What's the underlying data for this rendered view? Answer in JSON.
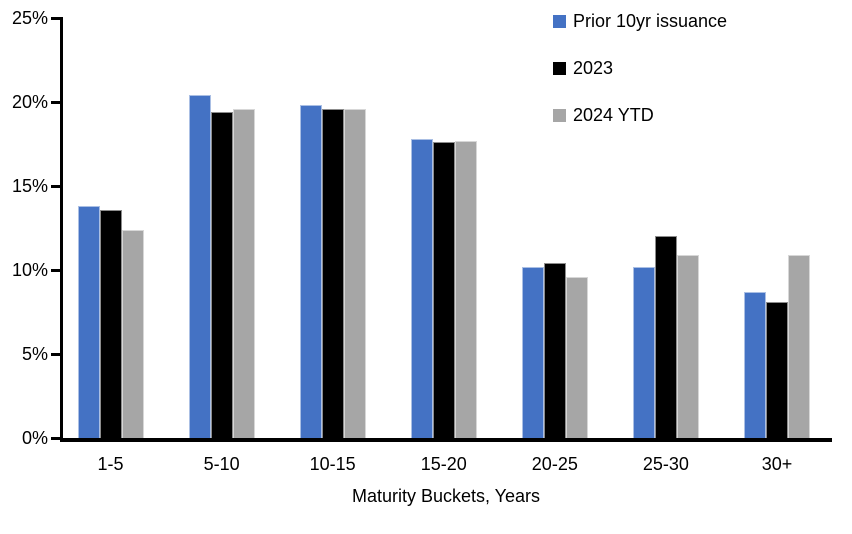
{
  "chart_data": {
    "type": "bar",
    "title": "",
    "xlabel": "Maturity Buckets, Years",
    "ylabel": "",
    "categories": [
      "1-5",
      "5-10",
      "10-15",
      "15-20",
      "20-25",
      "25-30",
      "30+"
    ],
    "series": [
      {
        "name": "Prior 10yr issuance",
        "color": "#4472C4",
        "values": [
          13.8,
          20.4,
          19.8,
          17.8,
          10.2,
          10.2,
          8.7
        ]
      },
      {
        "name": "2023",
        "color": "#000000",
        "values": [
          13.6,
          19.4,
          19.6,
          17.6,
          10.4,
          12.0,
          8.1
        ]
      },
      {
        "name": "2024 YTD",
        "color": "#A6A6A6",
        "values": [
          12.4,
          19.6,
          19.6,
          17.7,
          9.6,
          10.9,
          10.9
        ]
      }
    ],
    "y_axis": {
      "min": 0,
      "max": 25,
      "step": 5,
      "tick_labels": [
        "0%",
        "5%",
        "10%",
        "15%",
        "20%",
        "25%"
      ]
    },
    "legend_position": "top-right",
    "grid": false,
    "axis_color": "#000000",
    "background_color": "#FFFFFF"
  }
}
